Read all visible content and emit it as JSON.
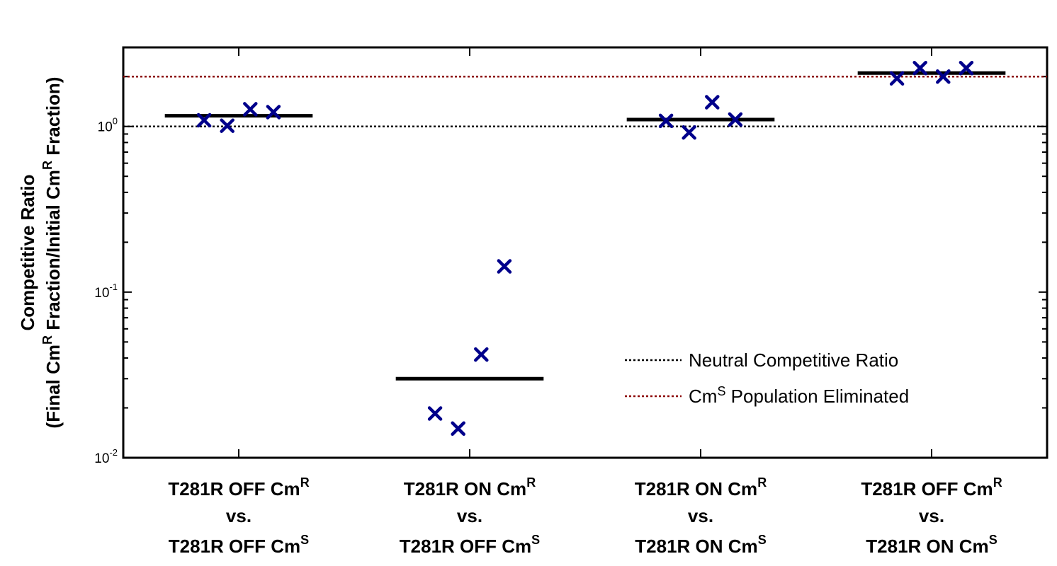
{
  "chart_data": {
    "type": "scatter",
    "yscale": "log",
    "ylim": [
      0.01,
      3.0
    ],
    "y_ticks": [
      {
        "value": 1,
        "base": "10",
        "exp": "0"
      },
      {
        "value": 0.1,
        "base": "10",
        "exp": "-1"
      },
      {
        "value": 0.01,
        "base": "10",
        "exp": "-2"
      }
    ],
    "ylabel": {
      "line1": "Competitive Ratio",
      "line2_parts": [
        {
          "text": "(Final Cm"
        },
        {
          "text": "R",
          "sup": true
        },
        {
          "text": " Fraction/Initial Cm"
        },
        {
          "text": "R",
          "sup": true
        },
        {
          "text": " Fraction)"
        }
      ]
    },
    "categories": [
      {
        "line1": {
          "text": "T281R OFF Cm",
          "sup": "R"
        },
        "line2": "vs.",
        "line3": {
          "text": "T281R OFF Cm",
          "sup": "S"
        },
        "points": [
          1.09,
          1.01,
          1.27,
          1.22
        ],
        "mean": 1.16
      },
      {
        "line1": {
          "text": "T281R ON Cm",
          "sup": "R"
        },
        "line2": "vs.",
        "line3": {
          "text": "T281R OFF Cm",
          "sup": "S"
        },
        "points": [
          0.0185,
          0.015,
          0.042,
          0.143
        ],
        "mean": 0.03
      },
      {
        "line1": {
          "text": "T281R ON Cm",
          "sup": "R"
        },
        "line2": "vs.",
        "line3": {
          "text": "T281R ON Cm",
          "sup": "S"
        },
        "points": [
          1.08,
          0.92,
          1.4,
          1.1
        ],
        "mean": 1.1
      },
      {
        "line1": {
          "text": "T281R OFF Cm",
          "sup": "R"
        },
        "line2": "vs.",
        "line3": {
          "text": "T281R ON Cm",
          "sup": "S"
        },
        "points": [
          1.95,
          2.25,
          2.0,
          2.25
        ],
        "mean": 2.1
      }
    ],
    "reference_lines": [
      {
        "name": "Neutral Competitive Ratio",
        "value": 1.0,
        "color": "#000000",
        "style": "dotted"
      },
      {
        "name_parts": [
          {
            "text": "Cm"
          },
          {
            "text": "S",
            "sup": true
          },
          {
            "text": " Population Eliminated"
          }
        ],
        "value": 2.0,
        "color": "#8b0000",
        "style": "dotted"
      }
    ],
    "legend": {
      "position": "lower-right",
      "entries": [
        {
          "label_parts": [
            {
              "text": "Neutral Competitive Ratio"
            }
          ],
          "color": "#000000"
        },
        {
          "label_parts": [
            {
              "text": "Cm"
            },
            {
              "text": "S",
              "sup": true
            },
            {
              "text": " Population Eliminated"
            }
          ],
          "color": "#8b0000"
        }
      ]
    },
    "marker": {
      "shape": "x",
      "color": "#00008b"
    },
    "mean_line_color": "#000000",
    "grid": false
  }
}
